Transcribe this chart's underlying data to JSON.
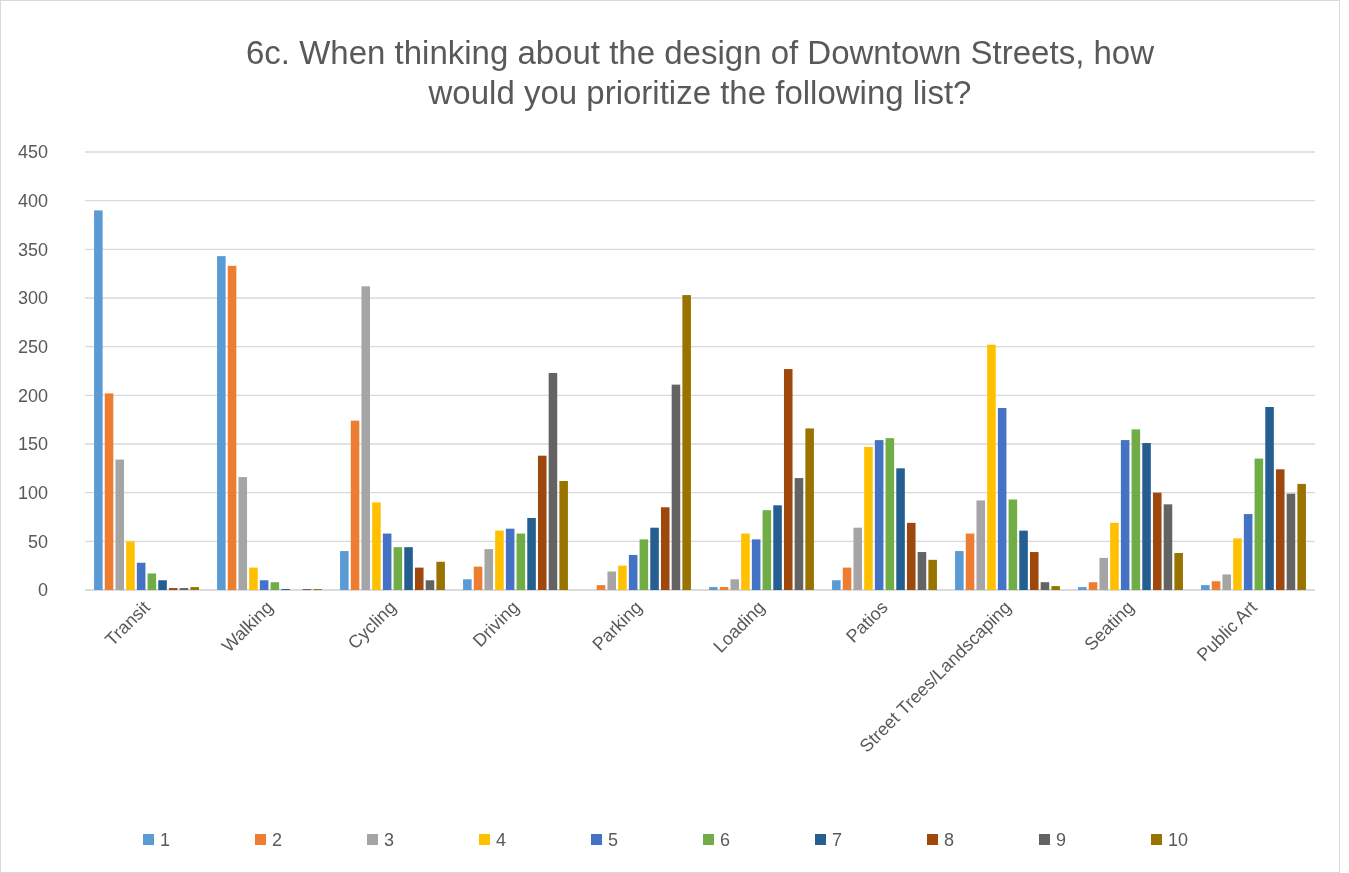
{
  "chart_data": {
    "type": "bar",
    "title": "6c. When thinking about the design of Downtown Streets, how would you prioritize the following list?",
    "categories": [
      "Transit",
      "Walking",
      "Cycling",
      "Driving",
      "Parking",
      "Loading",
      "Patios",
      "Street Trees/Landscaping",
      "Seating",
      "Public Art"
    ],
    "series": [
      {
        "name": "1",
        "color": "#5b9bd5",
        "values": [
          390,
          343,
          40,
          11,
          0,
          3,
          10,
          40,
          3,
          5
        ]
      },
      {
        "name": "2",
        "color": "#ed7d31",
        "values": [
          202,
          333,
          174,
          24,
          5,
          3,
          23,
          58,
          8,
          9
        ]
      },
      {
        "name": "3",
        "color": "#a5a5a5",
        "values": [
          134,
          116,
          312,
          42,
          19,
          11,
          64,
          92,
          33,
          16
        ]
      },
      {
        "name": "4",
        "color": "#ffc000",
        "values": [
          50,
          23,
          90,
          61,
          25,
          58,
          147,
          252,
          69,
          53
        ]
      },
      {
        "name": "5",
        "color": "#4472c4",
        "values": [
          28,
          10,
          58,
          63,
          36,
          52,
          154,
          187,
          154,
          78
        ]
      },
      {
        "name": "6",
        "color": "#70ad47",
        "values": [
          17,
          8,
          44,
          58,
          52,
          82,
          156,
          93,
          165,
          135
        ]
      },
      {
        "name": "7",
        "color": "#255e91",
        "values": [
          10,
          1,
          44,
          74,
          64,
          87,
          125,
          61,
          151,
          188
        ]
      },
      {
        "name": "8",
        "color": "#9e480e",
        "values": [
          2,
          0,
          23,
          138,
          85,
          227,
          69,
          39,
          100,
          124
        ]
      },
      {
        "name": "9",
        "color": "#636363",
        "values": [
          2,
          1,
          10,
          223,
          211,
          115,
          39,
          8,
          88,
          99
        ]
      },
      {
        "name": "10",
        "color": "#997300",
        "values": [
          3,
          1,
          29,
          112,
          303,
          166,
          31,
          4,
          38,
          109
        ]
      }
    ],
    "ylim": [
      0,
      450
    ],
    "yticks": [
      0,
      50,
      100,
      150,
      200,
      250,
      300,
      350,
      400,
      450
    ],
    "grid": "y",
    "legend": "bottom"
  }
}
